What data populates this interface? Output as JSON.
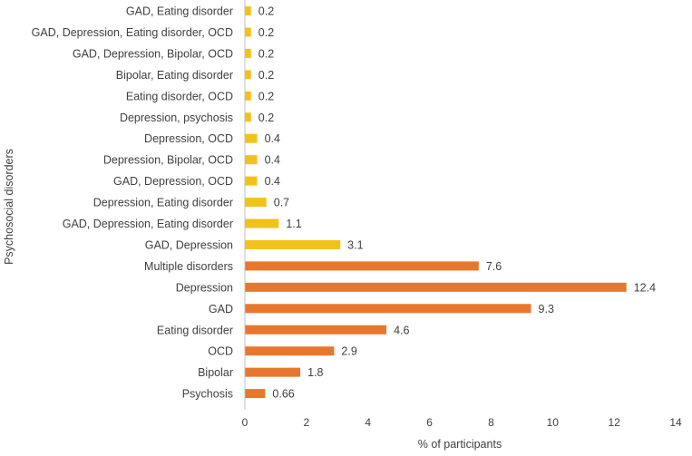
{
  "chart_data": {
    "type": "bar",
    "orientation": "horizontal",
    "title": "",
    "xlabel": "% of participants",
    "ylabel": "Psychosocial disorders",
    "xlim": [
      0,
      14
    ],
    "xticks": [
      0,
      2,
      4,
      6,
      8,
      10,
      12,
      14
    ],
    "grid": false,
    "categories": [
      "GAD, Eating disorder",
      "GAD, Depression, Eating disorder, OCD",
      "GAD, Depression, Bipolar, OCD",
      "Bipolar, Eating disorder",
      "Eating disorder, OCD",
      "Depression, psychosis",
      "Depression, OCD",
      "Depression, Bipolar, OCD",
      "GAD, Depression, OCD",
      "Depression, Eating disorder",
      "GAD, Depression, Eating disorder",
      "GAD, Depression",
      "Multiple disorders",
      "Depression",
      "GAD",
      "Eating disorder",
      "OCD",
      "Bipolar",
      "Psychosis"
    ],
    "values": [
      0.2,
      0.2,
      0.2,
      0.2,
      0.2,
      0.2,
      0.4,
      0.4,
      0.4,
      0.7,
      1.1,
      3.1,
      7.6,
      12.4,
      9.3,
      4.6,
      2.9,
      1.8,
      0.66
    ],
    "value_labels": [
      "0.2",
      "0.2",
      "0.2",
      "0.2",
      "0.2",
      "0.2",
      "0.4",
      "0.4",
      "0.4",
      "0.7",
      "1.1",
      "3.1",
      "7.6",
      "12.4",
      "9.3",
      "4.6",
      "2.9",
      "1.8",
      "0.66"
    ],
    "groups": [
      "combination",
      "combination",
      "combination",
      "combination",
      "combination",
      "combination",
      "combination",
      "combination",
      "combination",
      "combination",
      "combination",
      "combination",
      "single",
      "single",
      "single",
      "single",
      "single",
      "single",
      "single"
    ],
    "colors": {
      "combination": "#F2C21B",
      "single": "#E8772E",
      "text": "#404040",
      "axis": "#BFBFBF"
    }
  }
}
